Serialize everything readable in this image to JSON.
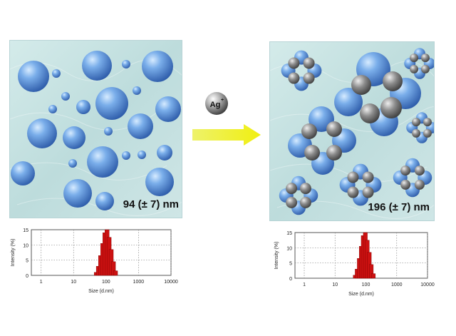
{
  "left_panel": {
    "size_label": "94 (± 7) nm"
  },
  "right_panel": {
    "size_label": "196 (± 7) nm"
  },
  "reagent": {
    "base": "Ag",
    "charge": "+"
  },
  "colors": {
    "panel_bg": "#c9e3e3",
    "blue_particle": "#5b8fd8",
    "gray_particle": "#8a8a8a",
    "arrow_fill": "#f2f21a",
    "bar_fill": "#cc1111"
  },
  "chart_data": [
    {
      "type": "bar",
      "name": "left-histogram",
      "xlabel": "Size (d.nm)",
      "ylabel": "Intensity (%)",
      "x_scale": "log",
      "xlim": [
        0.5,
        10000
      ],
      "ylim": [
        0,
        15
      ],
      "xticks": [
        "1",
        "10",
        "100",
        "1000",
        "10000"
      ],
      "yticks": [
        "0",
        "5",
        "10",
        "15"
      ],
      "grid": true,
      "x": [
        50,
        58,
        68,
        79,
        92,
        107,
        124,
        144,
        168,
        195
      ],
      "values": [
        1,
        3,
        6.5,
        10.5,
        14,
        15,
        12.5,
        8.5,
        4.5,
        1.5
      ]
    },
    {
      "type": "bar",
      "name": "right-histogram",
      "xlabel": "Size (d.nm)",
      "ylabel": "Intensity (%)",
      "x_scale": "log",
      "xlim": [
        0.5,
        10000
      ],
      "ylim": [
        0,
        15
      ],
      "xticks": [
        "1",
        "10",
        "100",
        "1000",
        "10000"
      ],
      "yticks": [
        "0",
        "5",
        "10",
        "15"
      ],
      "grid": true,
      "x": [
        45,
        52,
        61,
        71,
        82,
        96,
        111,
        129,
        150,
        175
      ],
      "values": [
        1,
        3,
        6.5,
        10.5,
        14,
        15,
        12.5,
        8.5,
        4.5,
        1.5
      ]
    }
  ]
}
